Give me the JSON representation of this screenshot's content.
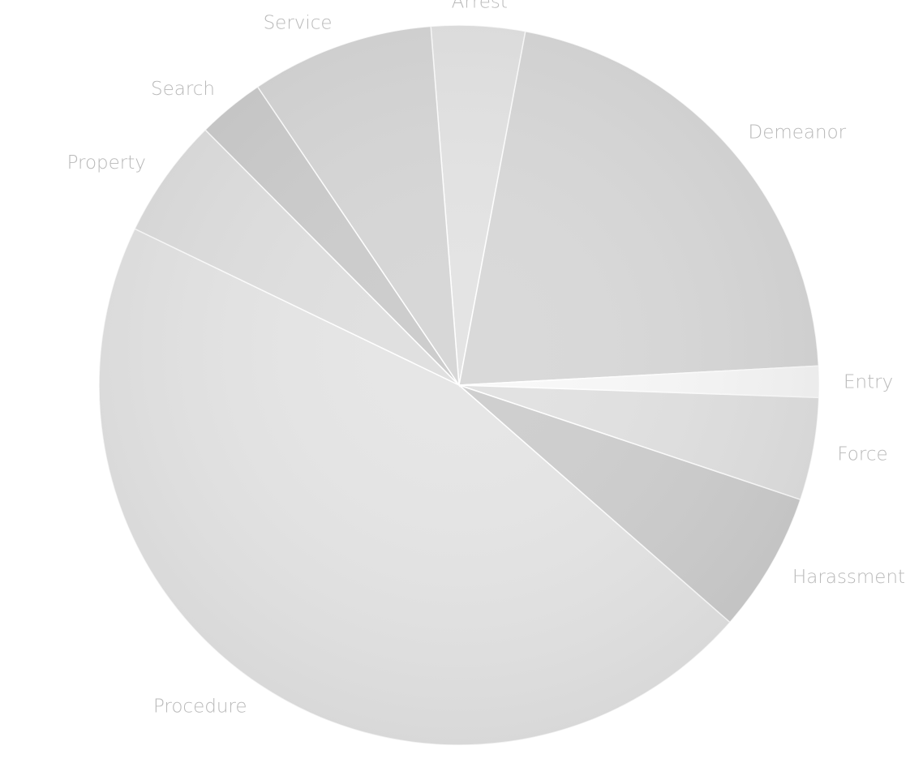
{
  "chart_data": {
    "type": "pie",
    "title": "",
    "start_angle_deg": -94.5,
    "slices": [
      {
        "label": "Arrest",
        "value": 4.2,
        "color": "#e4e4e4"
      },
      {
        "label": "Demeanor",
        "value": 21.2,
        "color": "#d9d9d9"
      },
      {
        "label": "Entry",
        "value": 1.4,
        "color": "#f8f8f8"
      },
      {
        "label": "Force",
        "value": 4.6,
        "color": "#e2e2e2"
      },
      {
        "label": "Harassment",
        "value": 6.3,
        "color": "#cfcfcf"
      },
      {
        "label": "Procedure",
        "value": 45.7,
        "color": "#e6e6e6"
      },
      {
        "label": "Property",
        "value": 5.4,
        "color": "#e0e0e0"
      },
      {
        "label": "Search",
        "value": 3.0,
        "color": "#cdcdcd"
      },
      {
        "label": "Service",
        "value": 8.2,
        "color": "#d7d7d7"
      }
    ]
  }
}
